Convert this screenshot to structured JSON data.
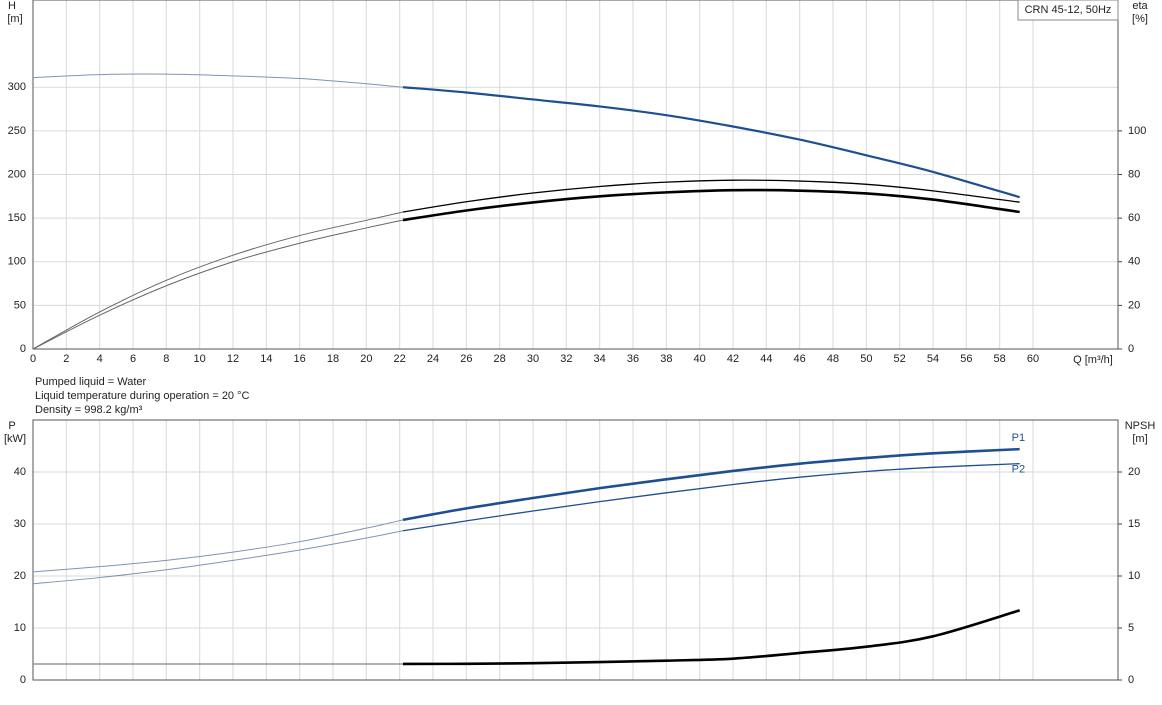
{
  "chart_data": [
    {
      "type": "line",
      "y_label": "H",
      "y_unit": "[m]",
      "y2_label": "eta",
      "y2_unit": "[%]",
      "x_label": "Q [m³/h]",
      "box_text": "CRN 45-12, 50Hz",
      "xlim": [
        0,
        65.1
      ],
      "xticks": [
        0,
        2,
        4,
        6,
        8,
        10,
        12,
        14,
        16,
        18,
        20,
        22,
        24,
        26,
        28,
        30,
        32,
        34,
        36,
        38,
        40,
        42,
        44,
        46,
        48,
        50,
        52,
        54,
        56,
        58,
        60
      ],
      "show_xtick_labels": true,
      "ylim": [
        0,
        400
      ],
      "yticks": [
        0,
        50,
        100,
        150,
        200,
        250,
        300
      ],
      "y2lim": [
        0,
        160
      ],
      "y2ticks": [
        0,
        20,
        40,
        60,
        80,
        100
      ],
      "grid": true,
      "thick_from": 22.2,
      "x": [
        0,
        4,
        8,
        12,
        16,
        20,
        22.2,
        26,
        30,
        34,
        38,
        42,
        46,
        50,
        54,
        59.2
      ],
      "series": [
        {
          "color": "#1d4f91",
          "values": [
            311,
            314.5,
            315,
            313,
            310,
            304,
            300,
            294,
            286,
            278,
            268,
            255,
            240,
            222,
            203,
            174
          ]
        },
        {
          "color": "#000000",
          "axis": "y2",
          "width": 1.3,
          "values": [
            0,
            17,
            31.5,
            43,
            52,
            59,
            62.8,
            67.5,
            71.5,
            74.5,
            76.5,
            77.4,
            77,
            75.5,
            72.5,
            67.3
          ]
        },
        {
          "color": "#000000",
          "axis": "y2",
          "width": 2.6,
          "values": [
            0,
            15.5,
            29,
            40,
            48.5,
            55.5,
            59.1,
            63.5,
            67.2,
            70,
            71.8,
            72.8,
            72.6,
            71.3,
            68.5,
            62.8
          ]
        }
      ]
    },
    {
      "type": "line",
      "y_label": "P",
      "y_unit": "[kW]",
      "y2_label": "NPSH",
      "y2_unit": "[m]",
      "xlim": [
        0,
        65.1
      ],
      "xticks": [
        0,
        2,
        4,
        6,
        8,
        10,
        12,
        14,
        16,
        18,
        20,
        22,
        24,
        26,
        28,
        30,
        32,
        34,
        36,
        38,
        40,
        42,
        44,
        46,
        48,
        50,
        52,
        54,
        56,
        58,
        60
      ],
      "show_xtick_labels": false,
      "ylim": [
        0,
        50
      ],
      "yticks": [
        0,
        10,
        20,
        30,
        40
      ],
      "y2lim": [
        0,
        25
      ],
      "y2ticks": [
        0,
        5,
        10,
        15,
        20
      ],
      "grid": true,
      "thick_from": 22.2,
      "x": [
        0,
        4,
        8,
        12,
        16,
        20,
        22.2,
        26,
        30,
        34,
        38,
        42,
        46,
        50,
        54,
        59.2
      ],
      "series": [
        {
          "name": "P1",
          "color": "#1d4f91",
          "width": 2.6,
          "values": [
            20.8,
            21.8,
            23,
            24.6,
            26.6,
            29.2,
            30.8,
            33,
            35,
            36.9,
            38.6,
            40.2,
            41.6,
            42.7,
            43.6,
            44.4
          ]
        },
        {
          "name": "P2",
          "color": "#1d4f91",
          "width": 1.3,
          "values": [
            18.5,
            19.7,
            21.2,
            23,
            25,
            27.3,
            28.7,
            30.6,
            32.5,
            34.3,
            36,
            37.6,
            39,
            40.1,
            40.9,
            41.6
          ]
        },
        {
          "color": "#000000",
          "axis": "y2",
          "width": 2.6,
          "values": [
            1.54,
            1.54,
            1.54,
            1.54,
            1.54,
            1.54,
            1.54,
            1.56,
            1.62,
            1.72,
            1.86,
            2.05,
            2.6,
            3.2,
            4.2,
            6.7
          ]
        }
      ]
    }
  ],
  "notes": [
    "Pumped liquid = Water",
    "Liquid temperature during operation = 20 °C",
    "Density = 998.2 kg/m³"
  ]
}
